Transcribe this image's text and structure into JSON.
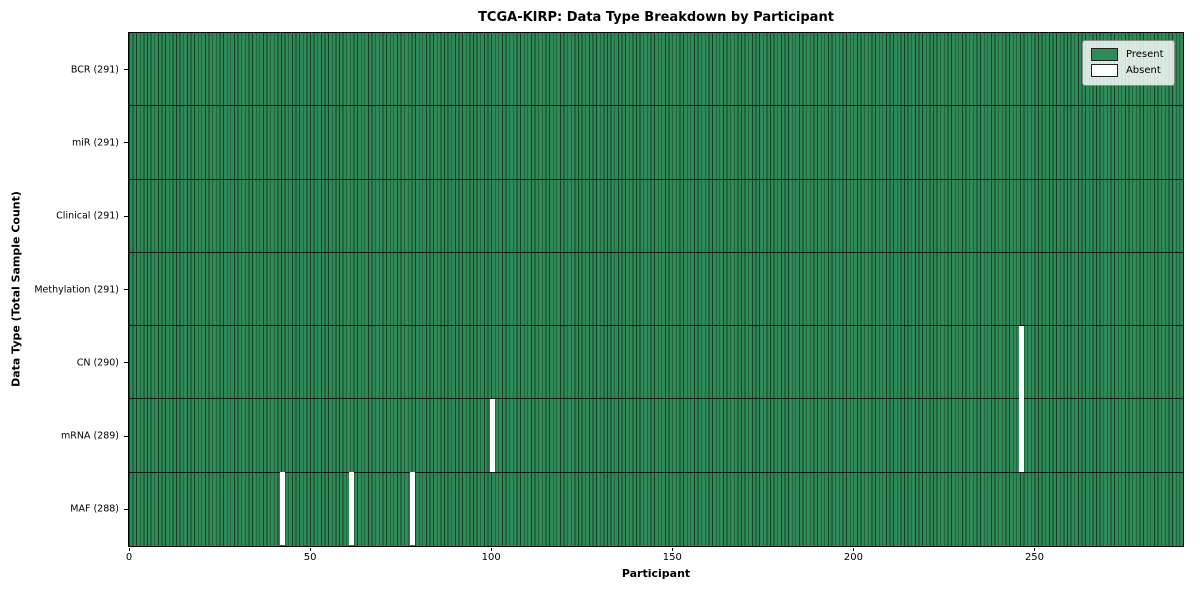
{
  "chart_data": {
    "type": "heatmap",
    "title": "TCGA-KIRP: Data Type Breakdown by Participant",
    "xlabel": "Participant",
    "ylabel": "Data Type (Total Sample Count)",
    "n_participants": 291,
    "x_ticks": [
      0,
      50,
      100,
      150,
      200,
      250
    ],
    "xlim": [
      0,
      291
    ],
    "grid": false,
    "legend_position": "upper right",
    "rows": [
      {
        "name": "bcr",
        "label": "BCR (291)",
        "present_count": 291,
        "absent_participants": []
      },
      {
        "name": "mir",
        "label": "miR (291)",
        "present_count": 291,
        "absent_participants": []
      },
      {
        "name": "clinical",
        "label": "Clinical (291)",
        "present_count": 291,
        "absent_participants": []
      },
      {
        "name": "methylation",
        "label": "Methylation (291)",
        "present_count": 291,
        "absent_participants": []
      },
      {
        "name": "cn",
        "label": "CN (290)",
        "present_count": 290,
        "absent_participants": [
          246
        ]
      },
      {
        "name": "mrna",
        "label": "mRNA (289)",
        "present_count": 289,
        "absent_participants": [
          100,
          246
        ]
      },
      {
        "name": "maf",
        "label": "MAF (288)",
        "present_count": 288,
        "absent_participants": [
          42,
          61,
          78
        ]
      }
    ],
    "legend": [
      {
        "label": "Present",
        "color": "#2e8b57"
      },
      {
        "label": "Absent",
        "color": "#ffffff"
      }
    ],
    "colors": {
      "present": "#2e8b57",
      "absent": "#ffffff",
      "bar_edge": "rgba(0,0,0,0.55)",
      "row_separator": "rgba(0,0,0,0.8)",
      "spine": "#000000"
    }
  }
}
